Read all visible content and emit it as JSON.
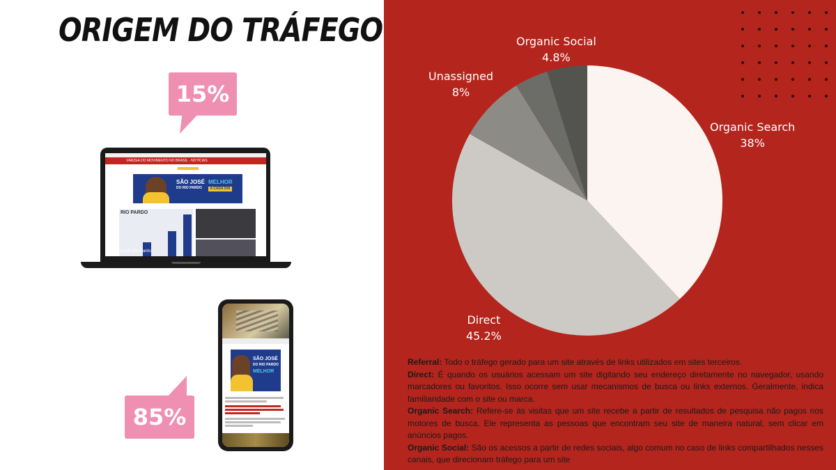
{
  "header": {
    "title": "ORIGEM DO TRÁFEGO"
  },
  "devices": {
    "desktop": {
      "percent": "15%"
    },
    "mobile": {
      "percent": "85%"
    }
  },
  "laptop_site": {
    "header_text": "VÁRZEA DO MOVIMENTO NO BRASIL - NOTÍCIAS",
    "banner_line1": "SÃO JOSÉ",
    "banner_line2": "DO RIO PARDO",
    "banner_highlight": "MELHOR",
    "banner_tag": "A CADA DIA",
    "chart_title": "RIO PARDO",
    "caption": "São José do Rio Pardo"
  },
  "phone_site": {
    "banner_line1": "SÃO JOSÉ",
    "banner_line2": "DO RIO PARDO",
    "banner_highlight": "MELHOR"
  },
  "chart_data": {
    "type": "pie",
    "title": "",
    "slices": [
      {
        "label": "Organic Search",
        "value_label": "38%",
        "value": 38,
        "color": "#fbf4f1"
      },
      {
        "label": "Direct",
        "value_label": "45.2%",
        "value": 45.2,
        "color": "#cdcac6"
      },
      {
        "label": "Unassigned",
        "value_label": "8%",
        "value": 8,
        "color": "#8c8b86"
      },
      {
        "label": "Referral",
        "value_label": "",
        "value": 4,
        "color": "#6c6d68"
      },
      {
        "label": "Organic Social",
        "value_label": "4.8%",
        "value": 4.8,
        "color": "#53544f"
      }
    ],
    "start": "12 o'clock",
    "direction": "clockwise"
  },
  "definitions": [
    {
      "term": "Referral:",
      "text": " Todo o tráfego gerado para um site através de links utilizados em sites terceiros."
    },
    {
      "term": "Direct:",
      "text": " É quando os usuários acessam um site digitando seu endereço diretamente no navegador, usando marcadores ou favoritos. Isso ocorre sem usar mecanismos de busca ou links externos. Geralmente, indica familiaridade com o site ou marca."
    },
    {
      "term": "Organic Search:",
      "text": " Refere-se às visitas que um site recebe a partir de resultados de pesquisa não pagos nos motores de busca. Ele representa as pessoas que encontram seu site de maneira natural, sem clicar em anúncios pagos."
    },
    {
      "term": "Organic Social:",
      "text": " São os acessos a partir de redes sociais, algo comum no caso de links compartilhados nesses canais, que direcionam tráfego para um site"
    }
  ],
  "colors": {
    "panel": "#b4251d",
    "bubble": "#ef8fb2"
  }
}
